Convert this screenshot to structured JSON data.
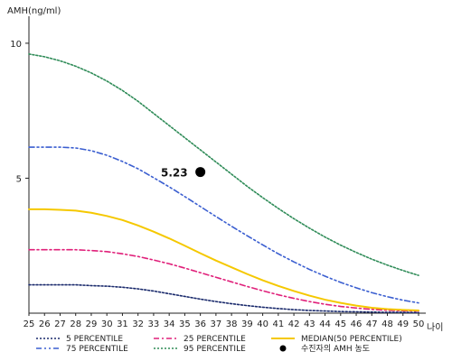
{
  "chart_data": {
    "type": "line",
    "ylabel": "AMH(ng/ml)",
    "xlabel": "나이",
    "xlim": [
      25,
      50
    ],
    "ylim": [
      0,
      11
    ],
    "x_ticks": [
      25,
      26,
      27,
      28,
      29,
      30,
      31,
      32,
      33,
      34,
      35,
      36,
      37,
      38,
      39,
      40,
      41,
      42,
      43,
      44,
      45,
      46,
      47,
      48,
      49,
      50
    ],
    "y_ticks": [
      5,
      10
    ],
    "x": [
      25,
      26,
      27,
      28,
      29,
      30,
      31,
      32,
      33,
      34,
      35,
      36,
      37,
      38,
      39,
      40,
      41,
      42,
      43,
      44,
      45,
      46,
      47,
      48,
      49,
      50
    ],
    "series": [
      {
        "name": "5 PERCENTILE",
        "color": "#1a2a6c",
        "dash": "dotted",
        "values": [
          1.05,
          1.05,
          1.05,
          1.05,
          1.02,
          1.0,
          0.96,
          0.9,
          0.82,
          0.72,
          0.62,
          0.52,
          0.43,
          0.35,
          0.28,
          0.22,
          0.17,
          0.13,
          0.1,
          0.08,
          0.06,
          0.05,
          0.04,
          0.03,
          0.03,
          0.02
        ]
      },
      {
        "name": "25 PERCENTILE",
        "color": "#e0207a",
        "dash": "dashdot",
        "values": [
          2.35,
          2.35,
          2.35,
          2.35,
          2.32,
          2.28,
          2.2,
          2.1,
          1.97,
          1.83,
          1.67,
          1.5,
          1.33,
          1.16,
          0.99,
          0.83,
          0.68,
          0.55,
          0.43,
          0.33,
          0.25,
          0.19,
          0.14,
          0.11,
          0.09,
          0.08
        ]
      },
      {
        "name": "MEDIAN(50 PERCENTILE)",
        "color": "#f5c800",
        "dash": "solid",
        "values": [
          3.85,
          3.85,
          3.83,
          3.8,
          3.72,
          3.6,
          3.45,
          3.25,
          3.02,
          2.77,
          2.5,
          2.22,
          1.95,
          1.7,
          1.45,
          1.22,
          1.01,
          0.82,
          0.65,
          0.5,
          0.38,
          0.28,
          0.2,
          0.15,
          0.12,
          0.1
        ]
      },
      {
        "name": "75 PERCENTILE",
        "color": "#3a5ed0",
        "dash": "dashdotdot",
        "values": [
          6.15,
          6.15,
          6.15,
          6.12,
          6.02,
          5.85,
          5.62,
          5.35,
          5.02,
          4.68,
          4.32,
          3.95,
          3.58,
          3.22,
          2.87,
          2.53,
          2.2,
          1.9,
          1.62,
          1.37,
          1.14,
          0.94,
          0.76,
          0.61,
          0.48,
          0.38
        ]
      },
      {
        "name": "95 PERCENTILE",
        "color": "#2e8b57",
        "dash": "dotted",
        "values": [
          9.6,
          9.5,
          9.35,
          9.15,
          8.9,
          8.6,
          8.25,
          7.85,
          7.4,
          6.95,
          6.5,
          6.05,
          5.6,
          5.15,
          4.7,
          4.28,
          3.88,
          3.5,
          3.15,
          2.82,
          2.52,
          2.25,
          2.0,
          1.78,
          1.58,
          1.4
        ]
      }
    ],
    "points": [
      {
        "name": "수진자의 AMH 농도",
        "x": 36,
        "y": 5.23,
        "label": "5.23",
        "color": "#000000"
      }
    ],
    "legend_position": "bottom",
    "grid": false
  }
}
